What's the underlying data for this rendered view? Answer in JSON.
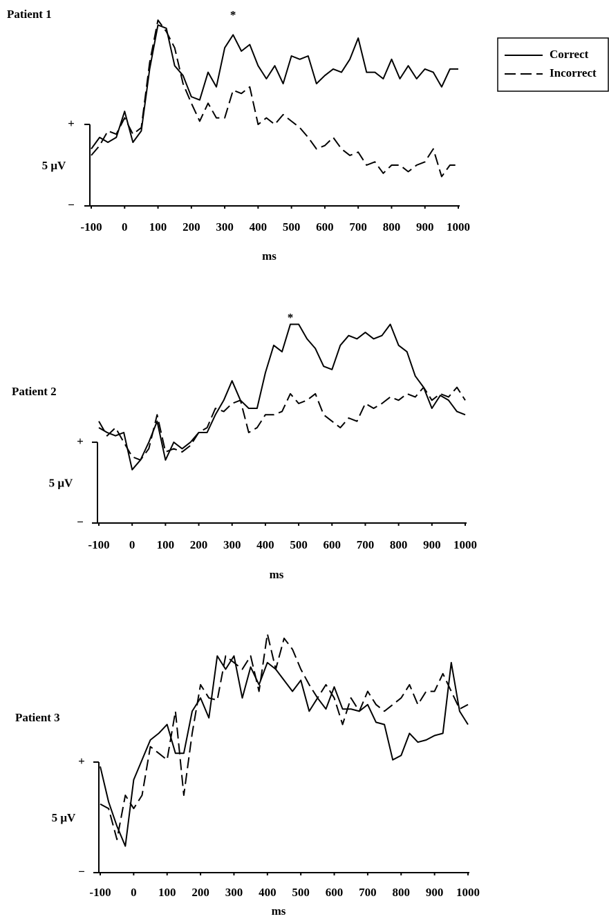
{
  "chart_data": [
    {
      "type": "line",
      "title": "Patient 1",
      "xlabel": "ms",
      "ylabel": "5 μV",
      "xlim": [
        -100,
        1000
      ],
      "xticks": [
        -100,
        0,
        100,
        200,
        300,
        400,
        500,
        600,
        700,
        800,
        900,
        1000
      ],
      "ylim": [
        0,
        12
      ],
      "yticks": [
        {
          "value": 5,
          "label": "+"
        },
        {
          "value": 0,
          "label": "−"
        }
      ],
      "legend": "upper right",
      "annotations": [
        {
          "text": "*",
          "x": 325
        }
      ],
      "x": [
        -100,
        -75,
        -50,
        -25,
        0,
        25,
        50,
        75,
        100,
        125,
        150,
        175,
        200,
        225,
        250,
        275,
        300,
        325,
        350,
        375,
        400,
        425,
        450,
        475,
        500,
        525,
        550,
        575,
        600,
        625,
        650,
        675,
        700,
        725,
        750,
        775,
        800,
        825,
        850,
        875,
        900,
        925,
        950,
        975,
        1000
      ],
      "series": [
        {
          "name": "Correct",
          "color": "#000000",
          "line_style": "solid",
          "values": [
            3.5,
            4.2,
            3.9,
            4.2,
            5.8,
            3.9,
            4.6,
            8.4,
            11.1,
            10.9,
            8.6,
            8.0,
            6.7,
            6.5,
            8.2,
            7.3,
            9.7,
            10.5,
            9.5,
            9.9,
            8.6,
            7.8,
            8.6,
            7.5,
            9.2,
            9.0,
            9.2,
            7.5,
            8.0,
            8.4,
            8.2,
            9.0,
            10.3,
            8.2,
            8.2,
            7.8,
            9.0,
            7.8,
            8.6,
            7.8,
            8.4,
            8.2,
            7.3,
            8.4,
            8.4
          ]
        },
        {
          "name": "Incorrect",
          "color": "#000000",
          "line_style": "dashed",
          "values": [
            3.1,
            3.7,
            4.6,
            4.4,
            5.4,
            4.4,
            4.8,
            8.8,
            11.4,
            10.7,
            9.7,
            7.5,
            6.3,
            5.2,
            6.3,
            5.4,
            5.4,
            7.1,
            6.9,
            7.3,
            5.0,
            5.4,
            5.0,
            5.6,
            5.2,
            4.8,
            4.2,
            3.5,
            3.7,
            4.2,
            3.5,
            3.1,
            3.3,
            2.5,
            2.7,
            2.0,
            2.5,
            2.5,
            2.1,
            2.5,
            2.7,
            3.5,
            1.8,
            2.5,
            2.5
          ]
        }
      ]
    },
    {
      "type": "line",
      "title": "Patient 2",
      "xlabel": "ms",
      "ylabel": "5 μV",
      "xlim": [
        -100,
        1000
      ],
      "xticks": [
        -100,
        0,
        100,
        200,
        300,
        400,
        500,
        600,
        700,
        800,
        900,
        1000
      ],
      "ylim": [
        0,
        13
      ],
      "yticks": [
        {
          "value": 5,
          "label": "+"
        },
        {
          "value": 0,
          "label": "−"
        }
      ],
      "annotations": [
        {
          "text": "*",
          "x": 475
        }
      ],
      "x": [
        -100,
        -75,
        -50,
        -25,
        0,
        25,
        50,
        75,
        100,
        125,
        150,
        175,
        200,
        225,
        250,
        275,
        300,
        325,
        350,
        375,
        400,
        425,
        450,
        475,
        500,
        525,
        550,
        575,
        600,
        625,
        650,
        675,
        700,
        725,
        750,
        775,
        800,
        825,
        850,
        875,
        900,
        925,
        950,
        975,
        1000
      ],
      "series": [
        {
          "name": "Correct",
          "color": "#000000",
          "line_style": "solid",
          "values": [
            5.9,
            5.6,
            5.4,
            5.6,
            3.3,
            3.9,
            5.0,
            6.3,
            3.9,
            5.0,
            4.6,
            5.0,
            5.6,
            5.6,
            6.7,
            7.6,
            8.8,
            7.6,
            7.1,
            7.1,
            9.3,
            11.0,
            10.6,
            12.3,
            12.3,
            11.4,
            10.8,
            9.7,
            9.5,
            11.0,
            11.6,
            11.4,
            11.8,
            11.4,
            11.6,
            12.3,
            11.0,
            10.6,
            9.1,
            8.4,
            7.1,
            7.9,
            7.6,
            6.9,
            6.7
          ]
        },
        {
          "name": "Incorrect",
          "color": "#000000",
          "line_style": "dashed",
          "values": [
            6.3,
            5.4,
            5.9,
            5.0,
            4.1,
            3.9,
            4.6,
            6.7,
            4.4,
            4.6,
            4.4,
            4.8,
            5.6,
            5.9,
            7.1,
            6.9,
            7.4,
            7.6,
            5.6,
            5.9,
            6.7,
            6.7,
            6.9,
            8.0,
            7.4,
            7.6,
            8.0,
            6.7,
            6.3,
            5.9,
            6.5,
            6.3,
            7.4,
            7.1,
            7.4,
            7.8,
            7.6,
            8.0,
            7.8,
            8.4,
            7.6,
            8.0,
            7.8,
            8.4,
            7.6
          ]
        }
      ]
    },
    {
      "type": "line",
      "title": "Patient 3",
      "xlabel": "ms",
      "ylabel": "5 μV",
      "xlim": [
        -100,
        1000
      ],
      "xticks": [
        -100,
        0,
        100,
        200,
        300,
        400,
        500,
        600,
        700,
        800,
        900,
        1000
      ],
      "ylim": [
        0,
        11.5
      ],
      "yticks": [
        {
          "value": 5,
          "label": "+"
        },
        {
          "value": 0,
          "label": "−"
        }
      ],
      "x": [
        -100,
        -75,
        -50,
        -25,
        0,
        25,
        50,
        75,
        100,
        125,
        150,
        175,
        200,
        225,
        250,
        275,
        300,
        325,
        350,
        375,
        400,
        425,
        450,
        475,
        500,
        525,
        550,
        575,
        600,
        625,
        650,
        675,
        700,
        725,
        750,
        775,
        800,
        825,
        850,
        875,
        900,
        925,
        950,
        975,
        1000
      ],
      "series": [
        {
          "name": "Correct",
          "color": "#000000",
          "line_style": "solid",
          "values": [
            4.8,
            3.2,
            2.1,
            1.2,
            4.2,
            5.1,
            6.0,
            6.3,
            6.7,
            5.4,
            5.4,
            7.3,
            7.9,
            7.0,
            9.8,
            9.2,
            9.8,
            7.9,
            9.3,
            8.5,
            9.5,
            9.2,
            8.7,
            8.2,
            8.7,
            7.3,
            7.9,
            7.4,
            8.4,
            7.4,
            7.4,
            7.3,
            7.6,
            6.8,
            6.7,
            5.1,
            5.3,
            6.3,
            5.9,
            6.0,
            6.2,
            6.3,
            9.5,
            7.3,
            6.7
          ]
        },
        {
          "name": "Incorrect",
          "color": "#000000",
          "line_style": "dashed",
          "values": [
            3.1,
            2.9,
            1.5,
            3.5,
            2.9,
            3.5,
            5.7,
            5.4,
            5.1,
            7.3,
            3.5,
            6.3,
            8.5,
            7.9,
            7.8,
            9.8,
            9.5,
            9.2,
            9.8,
            8.2,
            10.8,
            9.2,
            10.6,
            10.1,
            9.2,
            8.5,
            7.9,
            8.5,
            7.9,
            6.7,
            7.9,
            7.3,
            8.2,
            7.6,
            7.3,
            7.6,
            7.9,
            8.5,
            7.6,
            8.2,
            8.2,
            9.0,
            8.2,
            7.4,
            7.6
          ]
        }
      ]
    }
  ]
}
